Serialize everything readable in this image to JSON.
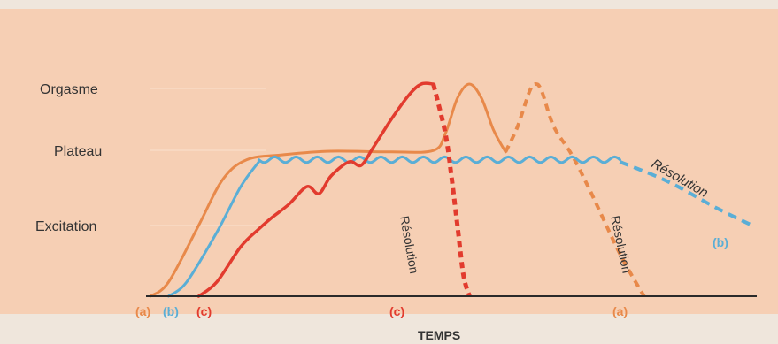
{
  "colors": {
    "background_page": "#efe6dc",
    "plot_background": "#f6cfb4",
    "axis": "#2a2a2a",
    "curve_a": "#e8894a",
    "curve_b": "#5aaed6",
    "curve_c": "#e23b2e",
    "label_text": "#333333"
  },
  "chart_data": {
    "type": "line",
    "title": "",
    "xlabel": "TEMPS",
    "ylabel": "",
    "y_levels": [
      "Orgasme",
      "Plateau",
      "Excitation"
    ],
    "ylim": [
      0,
      3.3
    ],
    "y_level_values": {
      "Orgasme": 3,
      "Plateau": 2,
      "Excitation": 1
    },
    "xlim": [
      0,
      100
    ],
    "series_markers": [
      "(a)",
      "(b)",
      "(c)"
    ],
    "series": [
      {
        "id": "a",
        "marker": "(a)",
        "color": "#e8894a",
        "points": [
          [
            0,
            0
          ],
          [
            3,
            0.2
          ],
          [
            8,
            1.0
          ],
          [
            12,
            1.65
          ],
          [
            16,
            1.93
          ],
          [
            22,
            2.0
          ],
          [
            30,
            2.05
          ],
          [
            40,
            2.04
          ],
          [
            47,
            2.06
          ],
          [
            49,
            2.3
          ],
          [
            51,
            2.8
          ],
          [
            53,
            3.0
          ],
          [
            55,
            2.8
          ],
          [
            57,
            2.35
          ],
          [
            59,
            2.04
          ]
        ],
        "dashed_points": [
          [
            59,
            2.04
          ],
          [
            61,
            2.4
          ],
          [
            63,
            2.9
          ],
          [
            64,
            3.0
          ],
          [
            65,
            2.9
          ],
          [
            67,
            2.4
          ],
          [
            70,
            2.0
          ],
          [
            73,
            1.5
          ],
          [
            78,
            0.6
          ],
          [
            82,
            0
          ]
        ],
        "dashed_label": "Résolution"
      },
      {
        "id": "b",
        "marker": "(b)",
        "color": "#5aaed6",
        "points": [
          [
            3,
            0
          ],
          [
            6,
            0.2
          ],
          [
            11,
            0.9
          ],
          [
            15,
            1.55
          ],
          [
            18,
            1.9
          ],
          [
            22,
            1.93
          ],
          [
            30,
            1.93
          ],
          [
            40,
            1.93
          ],
          [
            50,
            1.93
          ],
          [
            60,
            1.93
          ],
          [
            70,
            1.93
          ],
          [
            78,
            1.9
          ]
        ],
        "wavy": true,
        "dashed_points": [
          [
            78,
            1.9
          ],
          [
            86,
            1.62
          ],
          [
            94,
            1.25
          ],
          [
            100,
            1.0
          ]
        ],
        "dashed_label": "Résolution"
      },
      {
        "id": "c",
        "marker": "(c)",
        "color": "#e23b2e",
        "points": [
          [
            8,
            0
          ],
          [
            11,
            0.2
          ],
          [
            15,
            0.7
          ],
          [
            18,
            0.95
          ],
          [
            20,
            1.1
          ],
          [
            23,
            1.3
          ],
          [
            26,
            1.55
          ],
          [
            28,
            1.45
          ],
          [
            30,
            1.7
          ],
          [
            33,
            1.9
          ],
          [
            35,
            1.85
          ],
          [
            37,
            2.1
          ],
          [
            40,
            2.5
          ],
          [
            43,
            2.85
          ],
          [
            45,
            3.0
          ],
          [
            47,
            3.0
          ]
        ],
        "dashed_points": [
          [
            47,
            3.0
          ],
          [
            49,
            2.3
          ],
          [
            50,
            1.7
          ],
          [
            51,
            1.0
          ],
          [
            52,
            0.3
          ],
          [
            53,
            0
          ]
        ],
        "dashed_label": "Résolution"
      }
    ],
    "annotations": [
      "Résolution",
      "Résolution",
      "Résolution"
    ],
    "x_markers_end": [
      "(c)",
      "(a)",
      "(b)"
    ],
    "grid": false,
    "legend": "none"
  }
}
